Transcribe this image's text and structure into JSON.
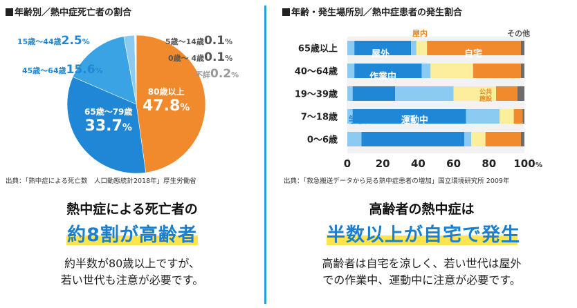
{
  "left": {
    "title": "年齢別／熱中症死亡者の割合",
    "source": "出典：「熱中症による死亡数　人口動態統計2018年」厚生労働省",
    "headline": "熱中症による死亡者の",
    "highlight": "約8割が高齢者",
    "body_line1": "約半数が80歳以上ですが、",
    "body_line2": "若い世代も注意が必要です。"
  },
  "right": {
    "title": "年齢・発生場所別／熱中症患者の発生割合",
    "source": "出典：「救急搬送データから見る熱中症患者の増加」国立環境研究所 2009年",
    "headline": "高齢者の熱中症は",
    "highlight": "半数以上が自宅で発生",
    "body_line1": "高齢者は自宅を涼しく、若い世代は屋外",
    "body_line2": "での作業中、運動中に注意が必要です。"
  },
  "colors": {
    "orange": "#f08a2c",
    "blue_dark": "#1f87d6",
    "blue_mid": "#3aa3e4",
    "blue_light": "#8ccbf1",
    "yellow_light": "#fbee9c",
    "gray": "#6d6d6d",
    "accent_blue": "#1a7fce",
    "highlight_yellow": "#ffe44d"
  },
  "chart_data": [
    {
      "type": "pie",
      "title": "年齢別／熱中症死亡者の割合",
      "unit": "%",
      "slices": [
        {
          "label": "80歳以上",
          "value": 47.8
        },
        {
          "label": "65歳〜79歳",
          "value": 33.7
        },
        {
          "label": "45歳〜64歳",
          "value": 15.6
        },
        {
          "label": "15歳〜44歳",
          "value": 2.5
        },
        {
          "label": "5歳〜14歳",
          "value": 0.1
        },
        {
          "label": "0歳〜 4歳",
          "value": 0.1
        },
        {
          "label": "不詳",
          "value": 0.2
        }
      ]
    },
    {
      "type": "bar",
      "orientation": "horizontal",
      "stacked": true,
      "title": "年齢・発生場所別／熱中症患者の発生割合",
      "categories": [
        "65歳以上",
        "40〜64歳",
        "19〜39歳",
        "7〜18歳",
        "0〜6歳"
      ],
      "xlim": [
        0,
        100
      ],
      "x_ticks": [
        "0",
        "20",
        "40",
        "60",
        "80",
        "100"
      ],
      "x_unit": "%",
      "segments": [
        {
          "name": "",
          "values": [
            4,
            4,
            3,
            3,
            8
          ]
        },
        {
          "name": "屋外",
          "values": [
            32,
            38,
            24,
            64,
            58
          ]
        },
        {
          "name": "",
          "values": [
            3,
            5,
            33,
            19,
            4
          ]
        },
        {
          "name": "屋内",
          "values": [
            6,
            24,
            24,
            8,
            8
          ]
        },
        {
          "name": "自宅",
          "values": [
            53,
            27,
            12,
            5,
            20
          ]
        },
        {
          "name": "その他",
          "values": [
            2,
            2,
            4,
            1,
            2
          ]
        }
      ],
      "segment_labels": {
        "outdoor": "屋外",
        "home": "自宅",
        "work": "作業中",
        "public": "公共施設",
        "school": "学校",
        "sports": "運動中",
        "indoor": "屋内",
        "other": "その他"
      }
    }
  ]
}
